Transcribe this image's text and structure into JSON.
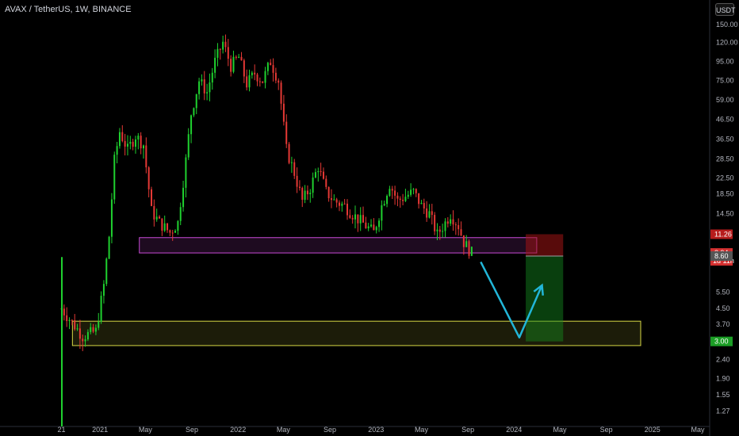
{
  "header": {
    "title": "AVAX / TetherUS, 1W, BINANCE",
    "currency": "USDT"
  },
  "colors": {
    "up": "#1fd12f",
    "down": "#e53935",
    "purple_zone": "#c84bd6",
    "yellow_zone": "#d7d945",
    "arrow": "#22b6d8"
  },
  "chart_data": {
    "type": "candlestick",
    "title": "AVAX / TetherUS, 1W, BINANCE",
    "y_scale": "log",
    "ylim": [
      1.05,
      170
    ],
    "x_ticks": [
      "21",
      "2021",
      "May",
      "Sep",
      "2022",
      "May",
      "Sep",
      "2023",
      "May",
      "Sep",
      "2024",
      "May",
      "Sep",
      "2025",
      "May"
    ],
    "y_ticks": [
      "150.00",
      "120.00",
      "95.00",
      "75.00",
      "59.00",
      "46.50",
      "36.50",
      "28.50",
      "22.50",
      "18.50",
      "14.50",
      "11.26",
      "8.94",
      "8.60",
      "5.50",
      "4.50",
      "3.70",
      "3.00",
      "2.40",
      "1.90",
      "1.55",
      "1.27"
    ],
    "price_labels": [
      {
        "value": "11.26",
        "color": "#b71c1c"
      },
      {
        "value": "8.94",
        "sub": "1d 11h",
        "color": "#d32f2f"
      },
      {
        "value": "8.60",
        "color": "#555555"
      },
      {
        "value": "3.00",
        "color": "#1b9e25"
      }
    ],
    "trend_series": [
      {
        "d": "2020-09-21",
        "p": 4.5
      },
      {
        "d": "2020-10-19",
        "p": 3.8
      },
      {
        "d": "2020-11-16",
        "p": 3.2
      },
      {
        "d": "2020-12-21",
        "p": 3.4
      },
      {
        "d": "2021-01-11",
        "p": 6
      },
      {
        "d": "2021-01-25",
        "p": 11
      },
      {
        "d": "2021-02-08",
        "p": 28
      },
      {
        "d": "2021-02-22",
        "p": 40
      },
      {
        "d": "2021-03-15",
        "p": 32
      },
      {
        "d": "2021-04-05",
        "p": 38
      },
      {
        "d": "2021-04-26",
        "p": 34
      },
      {
        "d": "2021-05-17",
        "p": 15
      },
      {
        "d": "2021-06-07",
        "p": 13
      },
      {
        "d": "2021-07-05",
        "p": 11.5
      },
      {
        "d": "2021-07-26",
        "p": 13
      },
      {
        "d": "2021-08-16",
        "p": 28
      },
      {
        "d": "2021-08-30",
        "p": 50
      },
      {
        "d": "2021-09-20",
        "p": 75
      },
      {
        "d": "2021-10-11",
        "p": 65
      },
      {
        "d": "2021-11-01",
        "p": 95
      },
      {
        "d": "2021-11-22",
        "p": 120
      },
      {
        "d": "2021-12-13",
        "p": 90
      },
      {
        "d": "2022-01-03",
        "p": 100
      },
      {
        "d": "2022-01-24",
        "p": 72
      },
      {
        "d": "2022-02-14",
        "p": 82
      },
      {
        "d": "2022-03-07",
        "p": 75
      },
      {
        "d": "2022-03-28",
        "p": 95
      },
      {
        "d": "2022-04-18",
        "p": 75
      },
      {
        "d": "2022-05-09",
        "p": 32
      },
      {
        "d": "2022-05-30",
        "p": 24
      },
      {
        "d": "2022-06-20",
        "p": 17
      },
      {
        "d": "2022-07-11",
        "p": 20
      },
      {
        "d": "2022-08-01",
        "p": 26
      },
      {
        "d": "2022-08-22",
        "p": 19
      },
      {
        "d": "2022-09-12",
        "p": 17
      },
      {
        "d": "2022-10-10",
        "p": 16
      },
      {
        "d": "2022-11-07",
        "p": 14
      },
      {
        "d": "2022-12-05",
        "p": 12.5
      },
      {
        "d": "2022-12-26",
        "p": 11.5
      },
      {
        "d": "2023-01-16",
        "p": 16
      },
      {
        "d": "2023-02-06",
        "p": 21
      },
      {
        "d": "2023-02-27",
        "p": 17
      },
      {
        "d": "2023-03-20",
        "p": 18
      },
      {
        "d": "2023-04-10",
        "p": 19
      },
      {
        "d": "2023-05-01",
        "p": 16
      },
      {
        "d": "2023-05-22",
        "p": 14.5
      },
      {
        "d": "2023-06-12",
        "p": 11.2
      },
      {
        "d": "2023-07-03",
        "p": 13
      },
      {
        "d": "2023-07-17",
        "p": 14.5
      },
      {
        "d": "2023-08-07",
        "p": 12.5
      },
      {
        "d": "2023-08-21",
        "p": 10.2
      },
      {
        "d": "2023-09-11",
        "p": 8.94
      }
    ],
    "zones": [
      {
        "name": "resistance zone",
        "from": "2021-04-15",
        "to": "2024-03-01",
        "low": 8.94,
        "high": 10.8
      },
      {
        "name": "support zone",
        "from": "2020-10-20",
        "to": "2024-12-01",
        "low": 2.85,
        "high": 3.85
      }
    ],
    "position": {
      "entry": 8.6,
      "stop": 11.26,
      "target": 3.0,
      "from": "2024-02-01",
      "to": "2024-05-10"
    },
    "projection": [
      {
        "d": "2023-10-05",
        "p": 8.0
      },
      {
        "d": "2024-01-15",
        "p": 3.15
      },
      {
        "d": "2024-03-15",
        "p": 6.0
      }
    ]
  }
}
